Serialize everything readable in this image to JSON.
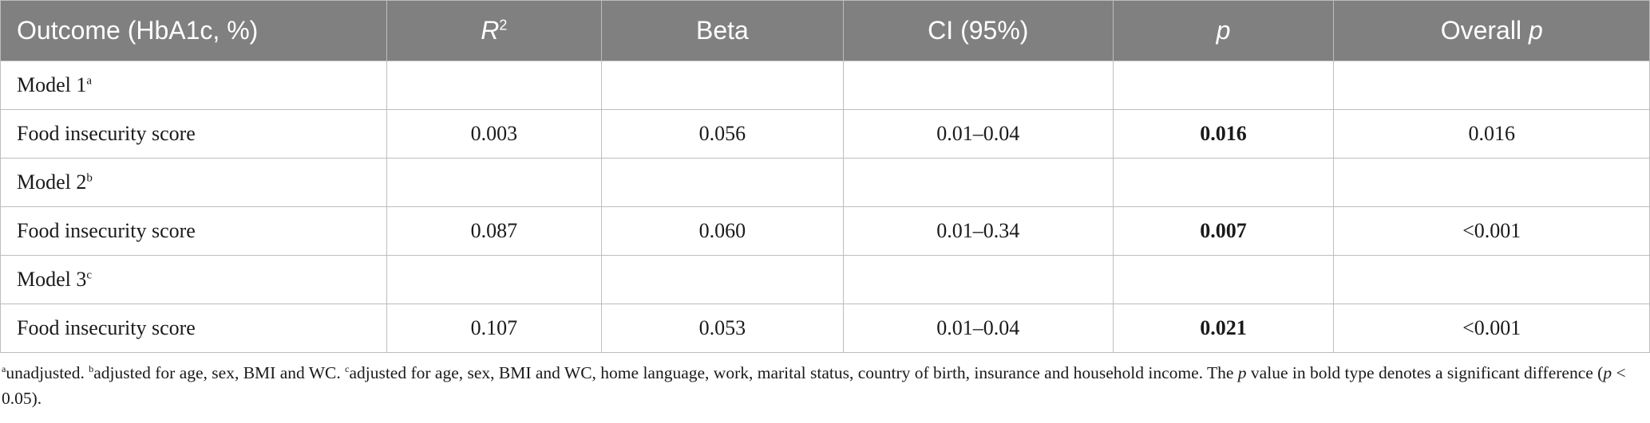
{
  "header": {
    "outcome": "Outcome (HbA1c, %)",
    "r2_letter": "R",
    "r2_sup": "2",
    "beta": "Beta",
    "ci": "CI (95%)",
    "p": "p",
    "overall_prefix": "Overall ",
    "overall_p": "p"
  },
  "rows": [
    {
      "label": "Model 1",
      "sup": "a"
    },
    {
      "label": "Food insecurity score",
      "r2": "0.003",
      "beta": "0.056",
      "ci": "0.01–0.04",
      "p": "0.016",
      "overall": "0.016"
    },
    {
      "label": "Model 2",
      "sup": "b"
    },
    {
      "label": "Food insecurity score",
      "r2": "0.087",
      "beta": "0.060",
      "ci": "0.01–0.34",
      "p": "0.007",
      "overall": "<0.001"
    },
    {
      "label": "Model 3",
      "sup": "c"
    },
    {
      "label": "Food insecurity score",
      "r2": "0.107",
      "beta": "0.053",
      "ci": "0.01–0.04",
      "p": "0.021",
      "overall": "<0.001"
    }
  ],
  "footnote": {
    "a_mark": "a",
    "a_text": "unadjusted. ",
    "b_mark": "b",
    "b_text": "adjusted for age, sex, BMI and WC. ",
    "c_mark": "c",
    "c_text": "adjusted for age, sex, BMI and WC, home language, work, marital status, country of birth, insurance and household income. The ",
    "p1": "p",
    "mid_text": " value in bold type denotes a significant difference (",
    "p2": "p",
    "end_text": " < 0.05)."
  },
  "colors": {
    "header_bg": "#808080",
    "header_text": "#ffffff",
    "border": "#bdbdbd"
  }
}
